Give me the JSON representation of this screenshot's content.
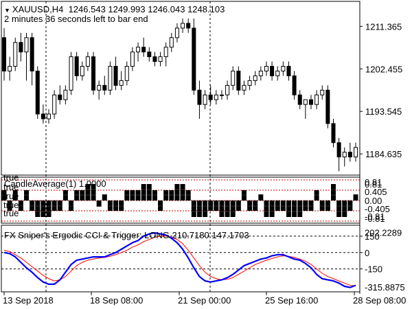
{
  "header": {
    "symbol": "XAUUSD,H4",
    "ohlc": "1246.543 1249.993 1246.043 1248.103",
    "timer": "2 minutes 36 seconds left to bar end"
  },
  "main_chart": {
    "price_labels": [
      "1211.365",
      "1202.455",
      "1193.545",
      "1184.635"
    ],
    "ylim": [
      1180.2,
      1216.6
    ],
    "candles": [
      [
        1209,
        1211,
        1200,
        1202
      ],
      [
        1202,
        1205,
        1200,
        1203
      ],
      [
        1203,
        1209,
        1202,
        1208
      ],
      [
        1208,
        1210,
        1204,
        1206
      ],
      [
        1206,
        1210,
        1200,
        1209
      ],
      [
        1209,
        1210,
        1199,
        1202
      ],
      [
        1202,
        1203,
        1192,
        1193
      ],
      [
        1193,
        1195,
        1191,
        1192
      ],
      [
        1192,
        1194,
        1191,
        1193
      ],
      [
        1193,
        1198,
        1192,
        1197
      ],
      [
        1197,
        1199,
        1195,
        1196
      ],
      [
        1196,
        1199,
        1195,
        1198
      ],
      [
        1198,
        1206,
        1197,
        1205
      ],
      [
        1205,
        1206,
        1200,
        1201
      ],
      [
        1201,
        1204,
        1200,
        1203
      ],
      [
        1203,
        1206,
        1202,
        1205
      ],
      [
        1205,
        1206,
        1197,
        1198
      ],
      [
        1198,
        1200,
        1196,
        1199
      ],
      [
        1199,
        1201,
        1197,
        1198
      ],
      [
        1198,
        1204,
        1197,
        1203
      ],
      [
        1203,
        1205,
        1198,
        1199
      ],
      [
        1199,
        1202,
        1198,
        1200
      ],
      [
        1200,
        1204,
        1199,
        1203
      ],
      [
        1203,
        1207,
        1202,
        1206
      ],
      [
        1206,
        1208,
        1204,
        1207
      ],
      [
        1207,
        1209,
        1205,
        1206
      ],
      [
        1206,
        1207,
        1204,
        1205
      ],
      [
        1205,
        1206,
        1203,
        1204
      ],
      [
        1204,
        1206,
        1203,
        1205
      ],
      [
        1205,
        1208,
        1203,
        1207
      ],
      [
        1207,
        1210,
        1206,
        1209
      ],
      [
        1209,
        1212,
        1208,
        1211
      ],
      [
        1211,
        1213,
        1210,
        1212
      ],
      [
        1212,
        1213,
        1210,
        1211
      ],
      [
        1211,
        1213,
        1197,
        1198
      ],
      [
        1198,
        1200,
        1192,
        1195
      ],
      [
        1195,
        1198,
        1194,
        1197
      ],
      [
        1197,
        1199,
        1195,
        1196
      ],
      [
        1196,
        1198,
        1195,
        1197
      ],
      [
        1197,
        1198,
        1196,
        1197
      ],
      [
        1197,
        1200,
        1196,
        1199
      ],
      [
        1199,
        1203,
        1198,
        1202
      ],
      [
        1202,
        1203,
        1197,
        1198
      ],
      [
        1198,
        1200,
        1197,
        1199
      ],
      [
        1199,
        1201,
        1198,
        1200
      ],
      [
        1200,
        1202,
        1199,
        1201
      ],
      [
        1201,
        1203,
        1200,
        1202
      ],
      [
        1202,
        1204,
        1201,
        1203
      ],
      [
        1203,
        1204,
        1200,
        1201
      ],
      [
        1201,
        1203,
        1200,
        1202
      ],
      [
        1202,
        1204,
        1201,
        1203
      ],
      [
        1203,
        1204,
        1200,
        1201
      ],
      [
        1201,
        1202,
        1196,
        1197
      ],
      [
        1197,
        1198,
        1194,
        1195
      ],
      [
        1195,
        1196,
        1192,
        1196
      ],
      [
        1196,
        1197,
        1194,
        1195
      ],
      [
        1195,
        1198,
        1194,
        1197
      ],
      [
        1197,
        1199,
        1196,
        1198
      ],
      [
        1198,
        1199,
        1190,
        1191
      ],
      [
        1191,
        1192,
        1186,
        1187
      ],
      [
        1187,
        1188,
        1181,
        1184
      ],
      [
        1184,
        1186,
        1182,
        1185
      ],
      [
        1185,
        1187,
        1183,
        1184
      ],
      [
        1184,
        1187,
        1183,
        1186
      ]
    ]
  },
  "ssa_pane": {
    "caption": "CandleAverage(1) 1.0000",
    "left_labels": [
      "true",
      "true",
      "true",
      "true",
      "true"
    ],
    "right_labels": [
      "0.81",
      "0.81",
      "0.405",
      "0.00",
      "-0.405",
      "-0.81",
      "-0.81"
    ],
    "levels": [
      0.81,
      0.405,
      0,
      -0.405,
      -0.81
    ],
    "bars": [
      1,
      -1,
      1,
      -1,
      1,
      -1,
      -1,
      -1,
      -1,
      -1,
      -1,
      1,
      -1,
      1,
      1,
      1,
      1,
      -1,
      1,
      -1,
      -1,
      -1,
      1,
      1,
      1,
      1,
      1,
      1,
      -1,
      1,
      1,
      1,
      1,
      1,
      -1,
      -1,
      -1,
      -1,
      -1,
      -1,
      -1,
      -1,
      -1,
      1,
      -1,
      -1,
      1,
      -1,
      -1,
      -1,
      -1,
      -1,
      -1,
      -1,
      -1,
      -1,
      1,
      -1,
      -1,
      1,
      -1,
      -1,
      -1,
      1
    ],
    "heights": [
      0.5,
      0.5,
      0.5,
      0.5,
      0.5,
      0.5,
      0.8,
      0.8,
      0.8,
      0.5,
      0.5,
      0.5,
      0.5,
      0.5,
      0.5,
      0.8,
      0.8,
      0.3,
      0.3,
      0.5,
      0.5,
      0.5,
      0.5,
      0.5,
      0.5,
      0.8,
      0.8,
      0.5,
      0.5,
      0.5,
      0.5,
      0.8,
      0.8,
      0.5,
      0.8,
      0.8,
      0.8,
      0.5,
      0.5,
      0.8,
      0.8,
      0.8,
      0.5,
      0.5,
      0.5,
      0.5,
      0.3,
      0.8,
      0.8,
      0.5,
      0.5,
      0.8,
      0.8,
      0.8,
      0.5,
      0.5,
      0.5,
      0.5,
      0.5,
      0.8,
      0.8,
      0.8,
      0.5,
      0.3
    ]
  },
  "cci_pane": {
    "caption": "FX Sniper's Ergodic CCI & Trigger: LONG 210.7180 147.1703",
    "labels": [
      "150",
      "202.2289",
      "0",
      "-150",
      "-315.8875"
    ],
    "ylim": [
      -360,
      250
    ],
    "cci_color": "#0000ff",
    "trigger_color": "#ff0000",
    "cci": [
      0,
      -10,
      -40,
      -90,
      -140,
      -180,
      -230,
      -270,
      -290,
      -290,
      -250,
      -180,
      -110,
      -70,
      -60,
      -50,
      -40,
      -40,
      -40,
      -20,
      0,
      30,
      60,
      90,
      110,
      150,
      170,
      180,
      170,
      160,
      130,
      90,
      30,
      -50,
      -140,
      -220,
      -260,
      -270,
      -260,
      -250,
      -230,
      -200,
      -160,
      -120,
      -100,
      -80,
      -60,
      -50,
      -30,
      -20,
      -20,
      -40,
      -60,
      -70,
      -100,
      -140,
      -200,
      -240,
      -250,
      -260,
      -280,
      -310,
      -320,
      -300
    ],
    "trigger": [
      20,
      10,
      -20,
      -50,
      -90,
      -130,
      -170,
      -210,
      -240,
      -260,
      -250,
      -220,
      -170,
      -120,
      -90,
      -70,
      -60,
      -50,
      -45,
      -35,
      -20,
      0,
      20,
      50,
      70,
      100,
      120,
      140,
      150,
      150,
      140,
      120,
      80,
      20,
      -50,
      -120,
      -180,
      -220,
      -240,
      -250,
      -245,
      -230,
      -200,
      -170,
      -140,
      -110,
      -90,
      -70,
      -55,
      -40,
      -30,
      -35,
      -45,
      -60,
      -80,
      -110,
      -150,
      -190,
      -220,
      -240,
      -260,
      -280,
      -300,
      -305
    ]
  },
  "x_axis": {
    "labels": [
      "13 Sep 2018",
      "18 Sep 08:00",
      "21 Sep 00:00",
      "25 Sep 16:00",
      "28 Sep 08:00"
    ]
  }
}
